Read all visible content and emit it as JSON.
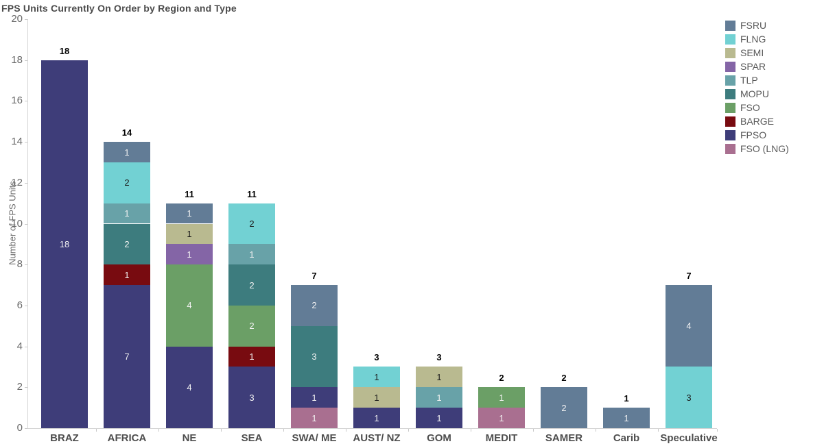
{
  "title": "FPS Units Currently On Order by Region and Type",
  "chart_data": {
    "type": "bar",
    "stacked": true,
    "title": "FPS Units Currently On Order by Region and Type",
    "ylabel": "Number of FPS Units",
    "xlabel": "",
    "ylim": [
      0,
      20
    ],
    "ytick_step": 2,
    "grid": false,
    "legend_position": "top-right",
    "stack_order": "reverse-of-legend",
    "categories": [
      "BRAZ",
      "AFRICA",
      "NE",
      "SEA",
      "SWA/ ME",
      "AUST/ NZ",
      "GOM",
      "MEDIT",
      "SAMER",
      "Carib",
      "Speculative"
    ],
    "totals": [
      18,
      14,
      11,
      11,
      7,
      3,
      3,
      2,
      2,
      1,
      7
    ],
    "series": [
      {
        "name": "FSRU",
        "color": "#627c96",
        "label_style": "light",
        "values": [
          0,
          1,
          1,
          0,
          2,
          0,
          0,
          0,
          2,
          1,
          4
        ]
      },
      {
        "name": "FLNG",
        "color": "#72d1d3",
        "label_style": "dark",
        "values": [
          0,
          2,
          0,
          2,
          0,
          1,
          0,
          0,
          0,
          0,
          3
        ]
      },
      {
        "name": "SEMI",
        "color": "#b9ba90",
        "label_style": "dark",
        "values": [
          0,
          0,
          1,
          0,
          0,
          1,
          1,
          0,
          0,
          0,
          0
        ]
      },
      {
        "name": "SPAR",
        "color": "#8465a6",
        "label_style": "light",
        "values": [
          0,
          0,
          1,
          0,
          0,
          0,
          0,
          0,
          0,
          0,
          0
        ]
      },
      {
        "name": "TLP",
        "color": "#68a2a8",
        "label_style": "light",
        "values": [
          0,
          1,
          0,
          1,
          0,
          0,
          1,
          0,
          0,
          0,
          0
        ]
      },
      {
        "name": "MOPU",
        "color": "#3d7c7e",
        "label_style": "light",
        "values": [
          0,
          2,
          0,
          2,
          3,
          0,
          0,
          0,
          0,
          0,
          0
        ]
      },
      {
        "name": "FSO",
        "color": "#6b9f66",
        "label_style": "light",
        "values": [
          0,
          0,
          4,
          2,
          0,
          0,
          0,
          1,
          0,
          0,
          0
        ]
      },
      {
        "name": "BARGE",
        "color": "#780b10",
        "label_style": "light",
        "values": [
          0,
          1,
          0,
          1,
          0,
          0,
          0,
          0,
          0,
          0,
          0
        ]
      },
      {
        "name": "FPSO",
        "color": "#3e3d79",
        "label_style": "light",
        "values": [
          18,
          7,
          4,
          3,
          1,
          1,
          1,
          0,
          0,
          0,
          0
        ]
      },
      {
        "name": "FSO (LNG)",
        "color": "#a96f90",
        "label_style": "light",
        "values": [
          0,
          0,
          0,
          0,
          1,
          0,
          0,
          1,
          0,
          0,
          0
        ]
      }
    ]
  }
}
